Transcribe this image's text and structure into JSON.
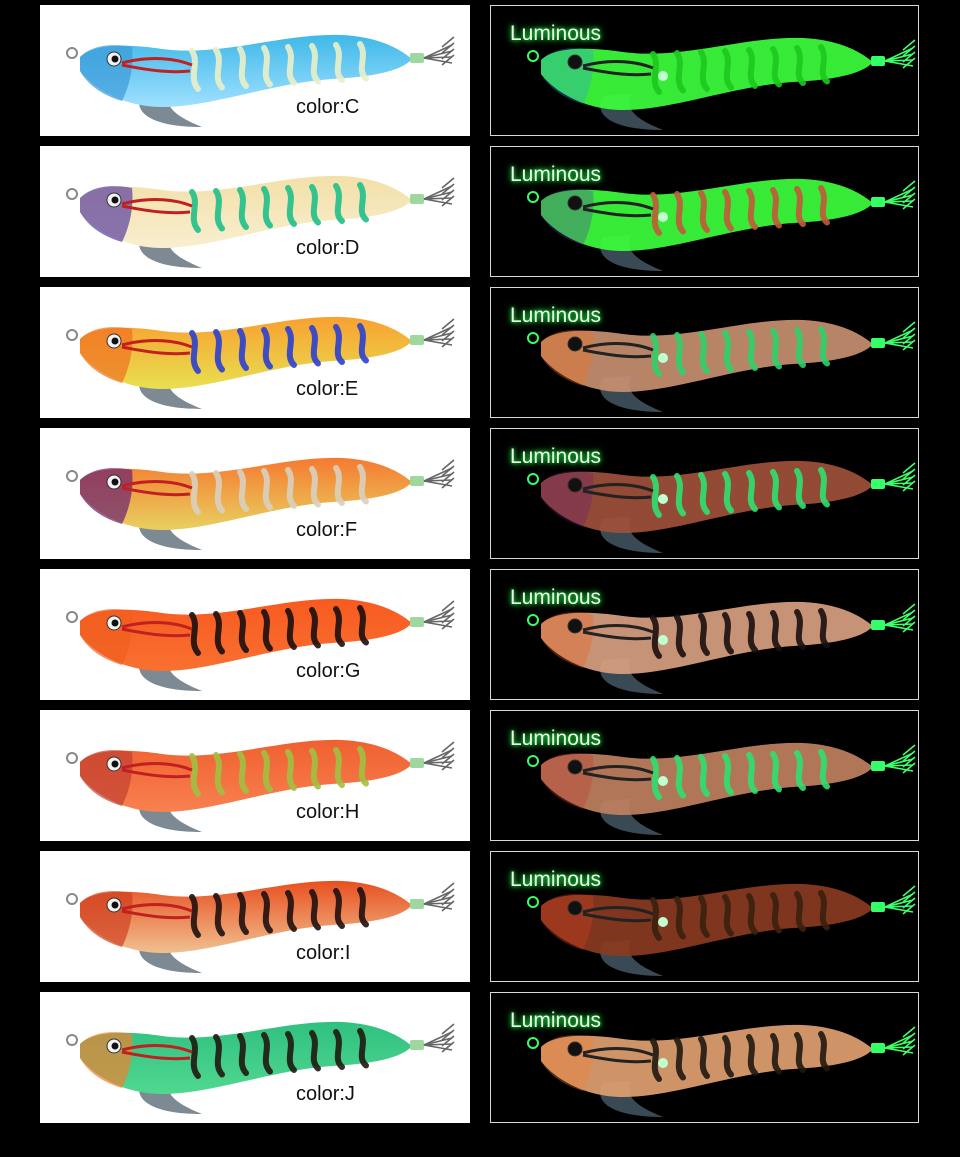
{
  "luminous_label": "Luminous",
  "lures": [
    {
      "id": "C",
      "label": "color:C",
      "body": "#3fb8e8",
      "belly": "#9fe0ff",
      "pattern": "#e9f0c8",
      "head": "#3a9ad8",
      "tail": "#7fd0f0",
      "glow": "#3cff3c",
      "glow_pattern": "#1ec81e"
    },
    {
      "id": "D",
      "label": "color:D",
      "body": "#f3dfa8",
      "belly": "#f8efd0",
      "pattern": "#1fbf8a",
      "head": "#5a3fa0",
      "tail": "#e8a070",
      "glow": "#3cff3c",
      "glow_pattern": "#c25a3a"
    },
    {
      "id": "E",
      "label": "color:E",
      "body": "#f8a030",
      "belly": "#e8e050",
      "pattern": "#2a40d0",
      "head": "#f07020",
      "tail": "#e8d040",
      "glow": "#c89070",
      "glow_pattern": "#2fd06a"
    },
    {
      "id": "F",
      "label": "color:F",
      "body": "#f57a30",
      "belly": "#e8d060",
      "pattern": "#d8d0c0",
      "head": "#6a2070",
      "tail": "#c03050",
      "glow": "#a0503a",
      "glow_pattern": "#2fe070"
    },
    {
      "id": "G",
      "label": "color:G",
      "body": "#f85a20",
      "belly": "#f87030",
      "pattern": "#1a1010",
      "head": "#f06020",
      "tail": "#f07040",
      "glow": "#d8a080",
      "glow_pattern": "#1a1010"
    },
    {
      "id": "H",
      "label": "color:H",
      "body": "#f06030",
      "belly": "#f88050",
      "pattern": "#a0c040",
      "head": "#c04030",
      "tail": "#a03020",
      "glow": "#c08060",
      "glow_pattern": "#2fe070"
    },
    {
      "id": "I",
      "label": "color:I",
      "body": "#e85020",
      "belly": "#f0c090",
      "pattern": "#201010",
      "head": "#d04020",
      "tail": "#b03020",
      "glow": "#8a3a20",
      "glow_pattern": "#3a2010"
    },
    {
      "id": "J",
      "label": "color:J",
      "body": "#30c080",
      "belly": "#50d890",
      "pattern": "#201810",
      "head": "#f08030",
      "tail": "#f09040",
      "glow": "#e0a070",
      "glow_pattern": "#201810"
    }
  ]
}
